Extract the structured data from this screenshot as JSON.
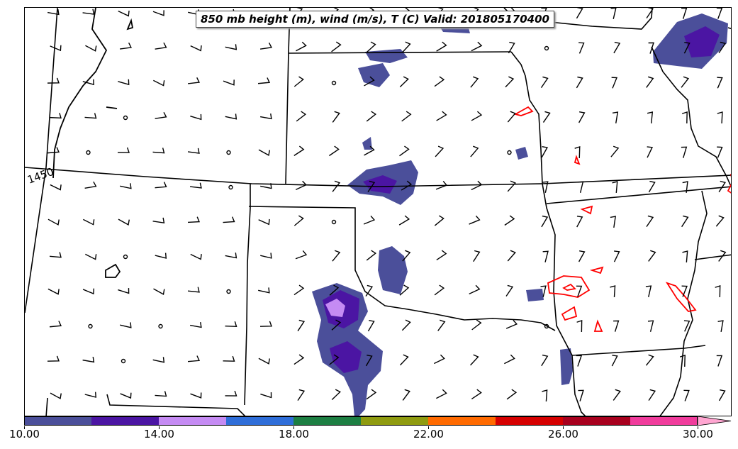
{
  "title": "850 mb height (m), wind (m/s), T (C) Valid: 201805170400",
  "contour_label": "1450",
  "colors": {
    "temperature_contour": "#ff0000",
    "boundaries": "#000000",
    "palette": [
      "#4b4f9a",
      "#4b15a3",
      "#c58bf3",
      "#2f6ed9",
      "#1d7f43",
      "#8f9b10",
      "#ff6a00",
      "#d60000",
      "#a8001e",
      "#f03c9c",
      "#ffa6d1"
    ]
  },
  "colorbar": {
    "min": 10,
    "max": 30,
    "step": 2,
    "extend": "max",
    "labels": [
      "10.00",
      "14.00",
      "18.00",
      "22.00",
      "26.00",
      "30.00"
    ]
  },
  "icons": {
    "wind_barb": "wind-barb-icon",
    "calm_wind": "calm-circle-icon"
  }
}
